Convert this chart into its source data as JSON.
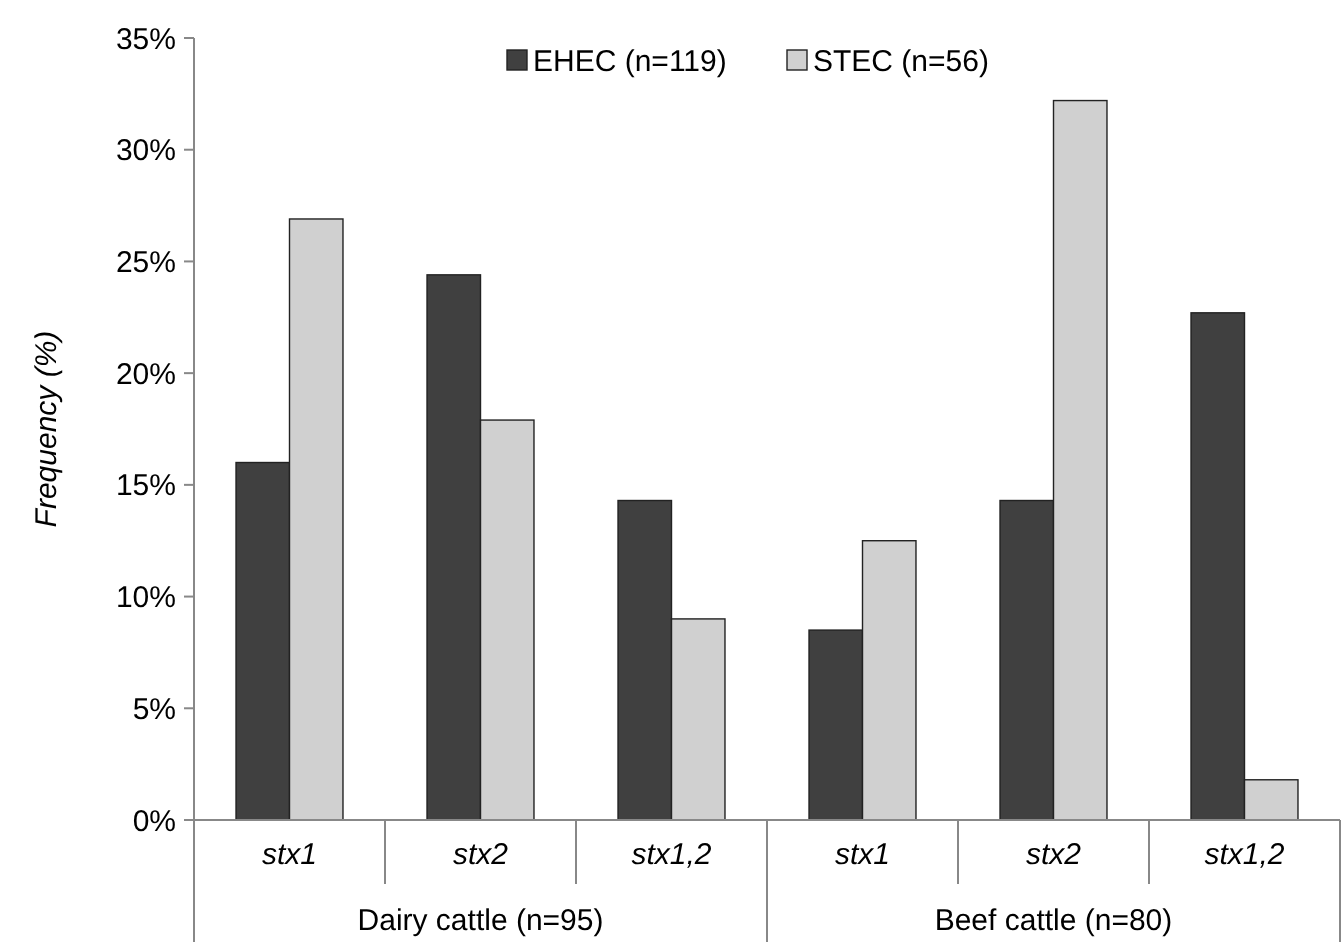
{
  "chart_data": {
    "type": "bar",
    "ylabel": "Frequency (%)",
    "categories": [
      "stx1",
      "stx2",
      "stx1,2",
      "stx1",
      "stx2",
      "stx1,2"
    ],
    "series": [
      {
        "name": "EHEC (n=119)",
        "color": "#404040",
        "values": [
          16.0,
          24.4,
          14.3,
          8.5,
          14.3,
          22.7
        ]
      },
      {
        "name": "STEC (n=56)",
        "color": "#d0d0d0",
        "values": [
          26.9,
          17.9,
          9.0,
          12.5,
          32.2,
          1.8
        ]
      }
    ],
    "ylim": [
      0,
      35
    ],
    "yticks": [
      {
        "value": 0,
        "label": "0%"
      },
      {
        "value": 5,
        "label": "5%"
      },
      {
        "value": 10,
        "label": "10%"
      },
      {
        "value": 15,
        "label": "15%"
      },
      {
        "value": 20,
        "label": "20%"
      },
      {
        "value": 25,
        "label": "25%"
      },
      {
        "value": 30,
        "label": "30%"
      },
      {
        "value": 35,
        "label": "35%"
      }
    ],
    "annotations": [
      "Dairy cattle (n=95)",
      "Beef cattle (n=80)"
    ],
    "legend": "top",
    "grid": false
  }
}
